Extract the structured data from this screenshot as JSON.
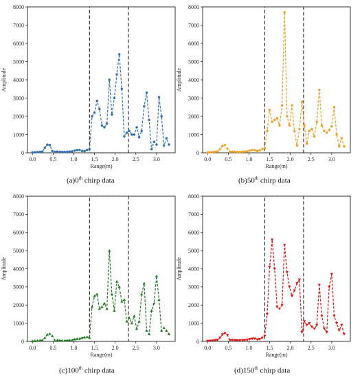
{
  "chart_data": [
    {
      "type": "line",
      "panel": "a",
      "caption": {
        "prefix": "(a)",
        "num": "0",
        "sup": "th",
        "suffix": " chirp data"
      },
      "xlabel": "Range(m)",
      "ylabel": "Amplitude",
      "xlim": [
        -0.12,
        3.45
      ],
      "ylim": [
        0,
        8000
      ],
      "xticks": [
        "0.0",
        "0.5",
        "1.0",
        "1.5",
        "2.0",
        "2.5",
        "3.0"
      ],
      "yticks": [
        "0",
        "1000",
        "2000",
        "3000",
        "4000",
        "5000",
        "6000",
        "7000",
        "8000"
      ],
      "highlight_box": {
        "x": [
          1.38,
          2.32
        ],
        "y": [
          0,
          8000
        ]
      },
      "color": "#2f6db0",
      "marker": "circle",
      "series": [
        {
          "x": [
            0.0,
            0.06,
            0.12,
            0.18,
            0.24,
            0.3,
            0.36,
            0.42,
            0.48,
            0.54,
            0.6,
            0.66,
            0.72,
            0.78,
            0.84,
            0.9,
            0.96,
            1.02,
            1.08,
            1.14,
            1.2,
            1.26,
            1.32,
            1.38,
            1.44,
            1.5,
            1.56,
            1.62,
            1.68,
            1.74,
            1.8,
            1.86,
            1.92,
            1.98,
            2.04,
            2.1,
            2.16,
            2.22,
            2.28,
            2.34,
            2.4,
            2.46,
            2.52,
            2.58,
            2.64,
            2.7,
            2.76,
            2.82,
            2.88,
            2.94,
            3.0,
            3.06,
            3.12,
            3.18,
            3.24,
            3.3
          ],
          "y": [
            20,
            30,
            40,
            60,
            70,
            280,
            450,
            420,
            100,
            60,
            70,
            60,
            50,
            50,
            60,
            70,
            80,
            120,
            150,
            150,
            100,
            90,
            160,
            200,
            2000,
            2200,
            2850,
            2400,
            1500,
            1400,
            1600,
            4000,
            2100,
            3000,
            4300,
            5400,
            3500,
            900,
            1100,
            1200,
            1000,
            1000,
            1400,
            850,
            1200,
            2550,
            3300,
            1800,
            200,
            600,
            450,
            3050,
            2000,
            400,
            800,
            450
          ]
        }
      ]
    },
    {
      "type": "line",
      "panel": "b",
      "caption": {
        "prefix": "(b)",
        "num": "50",
        "sup": "th",
        "suffix": " chirp data"
      },
      "xlabel": "Range(m)",
      "ylabel": "Amplitude",
      "xlim": [
        -0.12,
        3.45
      ],
      "ylim": [
        0,
        8000
      ],
      "xticks": [
        "0.0",
        "0.5",
        "1.0",
        "1.5",
        "2.0",
        "2.5",
        "3.0"
      ],
      "yticks": [
        "0",
        "1000",
        "2000",
        "3000",
        "4000",
        "5000",
        "6000",
        "7000",
        "8000"
      ],
      "highlight_box": {
        "x": [
          1.38,
          2.32
        ],
        "y": [
          0,
          8000
        ]
      },
      "color": "#f0a020",
      "marker": "circle",
      "series": [
        {
          "x": [
            0.0,
            0.06,
            0.12,
            0.18,
            0.24,
            0.3,
            0.36,
            0.42,
            0.48,
            0.54,
            0.6,
            0.66,
            0.72,
            0.78,
            0.84,
            0.9,
            0.96,
            1.02,
            1.08,
            1.14,
            1.2,
            1.26,
            1.32,
            1.38,
            1.44,
            1.5,
            1.56,
            1.62,
            1.68,
            1.74,
            1.8,
            1.86,
            1.92,
            1.98,
            2.04,
            2.1,
            2.16,
            2.22,
            2.28,
            2.34,
            2.4,
            2.46,
            2.52,
            2.58,
            2.64,
            2.7,
            2.76,
            2.82,
            2.88,
            2.94,
            3.0,
            3.06,
            3.12,
            3.18,
            3.24,
            3.3
          ],
          "y": [
            20,
            30,
            40,
            60,
            70,
            200,
            380,
            420,
            220,
            60,
            70,
            60,
            50,
            50,
            60,
            70,
            80,
            120,
            150,
            150,
            100,
            130,
            200,
            250,
            1200,
            2350,
            1700,
            1800,
            1900,
            1500,
            2600,
            7700,
            2000,
            1500,
            2600,
            1200,
            400,
            1300,
            2800,
            1500,
            500,
            1200,
            1300,
            900,
            1700,
            3450,
            1500,
            1200,
            1100,
            1250,
            1450,
            2500,
            1000,
            350,
            800,
            350
          ]
        }
      ]
    },
    {
      "type": "line",
      "panel": "c",
      "caption": {
        "prefix": "(c)",
        "num": "100",
        "sup": "th",
        "suffix": " chirp data"
      },
      "xlabel": "Range(m)",
      "ylabel": "Amplitude",
      "xlim": [
        -0.12,
        3.45
      ],
      "ylim": [
        0,
        8000
      ],
      "xticks": [
        "0.0",
        "0.5",
        "1.0",
        "1.5",
        "2.0",
        "2.5",
        "3.0"
      ],
      "yticks": [
        "0",
        "1000",
        "2000",
        "3000",
        "4000",
        "5000",
        "6000",
        "7000",
        "8000"
      ],
      "highlight_box": {
        "x": [
          1.38,
          2.32
        ],
        "y": [
          0,
          8000
        ]
      },
      "color": "#1f7a1f",
      "marker": "triangle",
      "series": [
        {
          "x": [
            0.0,
            0.06,
            0.12,
            0.18,
            0.24,
            0.3,
            0.36,
            0.42,
            0.48,
            0.54,
            0.6,
            0.66,
            0.72,
            0.78,
            0.84,
            0.9,
            0.96,
            1.02,
            1.08,
            1.14,
            1.2,
            1.26,
            1.32,
            1.38,
            1.44,
            1.5,
            1.56,
            1.62,
            1.68,
            1.74,
            1.8,
            1.86,
            1.92,
            1.98,
            2.04,
            2.1,
            2.16,
            2.22,
            2.28,
            2.34,
            2.4,
            2.46,
            2.52,
            2.58,
            2.64,
            2.7,
            2.76,
            2.82,
            2.88,
            2.94,
            3.0,
            3.06,
            3.12,
            3.18,
            3.24,
            3.3
          ],
          "y": [
            20,
            30,
            40,
            60,
            70,
            200,
            380,
            420,
            300,
            60,
            70,
            60,
            50,
            50,
            60,
            70,
            80,
            120,
            150,
            150,
            200,
            230,
            250,
            200,
            1900,
            2500,
            2600,
            1800,
            1900,
            2100,
            1800,
            5000,
            2600,
            1700,
            3300,
            3000,
            2200,
            2300,
            1100,
            1300,
            1000,
            1400,
            700,
            1100,
            2600,
            3200,
            600,
            400,
            1700,
            2100,
            3600,
            2300,
            600,
            750,
            600,
            400
          ]
        }
      ]
    },
    {
      "type": "line",
      "panel": "d",
      "caption": {
        "prefix": "(d)",
        "num": "150",
        "sup": "th",
        "suffix": " chirp data"
      },
      "xlabel": "Range(m)",
      "ylabel": "Amplitude",
      "xlim": [
        -0.12,
        3.45
      ],
      "ylim": [
        0,
        8000
      ],
      "xticks": [
        "0.0",
        "0.5",
        "1.0",
        "1.5",
        "2.0",
        "2.5",
        "3.0"
      ],
      "yticks": [
        "0",
        "1000",
        "2000",
        "3000",
        "4000",
        "5000",
        "6000",
        "7000",
        "8000"
      ],
      "highlight_box": {
        "x": [
          1.38,
          2.32
        ],
        "y": [
          0,
          8000
        ]
      },
      "color": "#e01010",
      "marker": "triangle-down",
      "series": [
        {
          "x": [
            0.0,
            0.06,
            0.12,
            0.18,
            0.24,
            0.3,
            0.36,
            0.42,
            0.48,
            0.54,
            0.6,
            0.66,
            0.72,
            0.78,
            0.84,
            0.9,
            0.96,
            1.02,
            1.08,
            1.14,
            1.2,
            1.26,
            1.32,
            1.38,
            1.44,
            1.5,
            1.56,
            1.62,
            1.68,
            1.74,
            1.8,
            1.86,
            1.92,
            1.98,
            2.04,
            2.1,
            2.16,
            2.22,
            2.28,
            2.34,
            2.4,
            2.46,
            2.52,
            2.58,
            2.64,
            2.7,
            2.76,
            2.82,
            2.88,
            2.94,
            3.0,
            3.06,
            3.12,
            3.18,
            3.24,
            3.3
          ],
          "y": [
            20,
            30,
            40,
            60,
            70,
            200,
            380,
            450,
            350,
            60,
            70,
            60,
            50,
            50,
            60,
            70,
            80,
            120,
            150,
            150,
            100,
            120,
            200,
            300,
            1500,
            4100,
            5600,
            4000,
            1900,
            1800,
            2000,
            5300,
            3800,
            3000,
            2500,
            2800,
            3200,
            3400,
            500,
            1100,
            900,
            1000,
            800,
            700,
            900,
            3100,
            1400,
            700,
            500,
            3000,
            3700,
            1400,
            1000,
            600,
            900,
            400
          ]
        }
      ]
    }
  ]
}
